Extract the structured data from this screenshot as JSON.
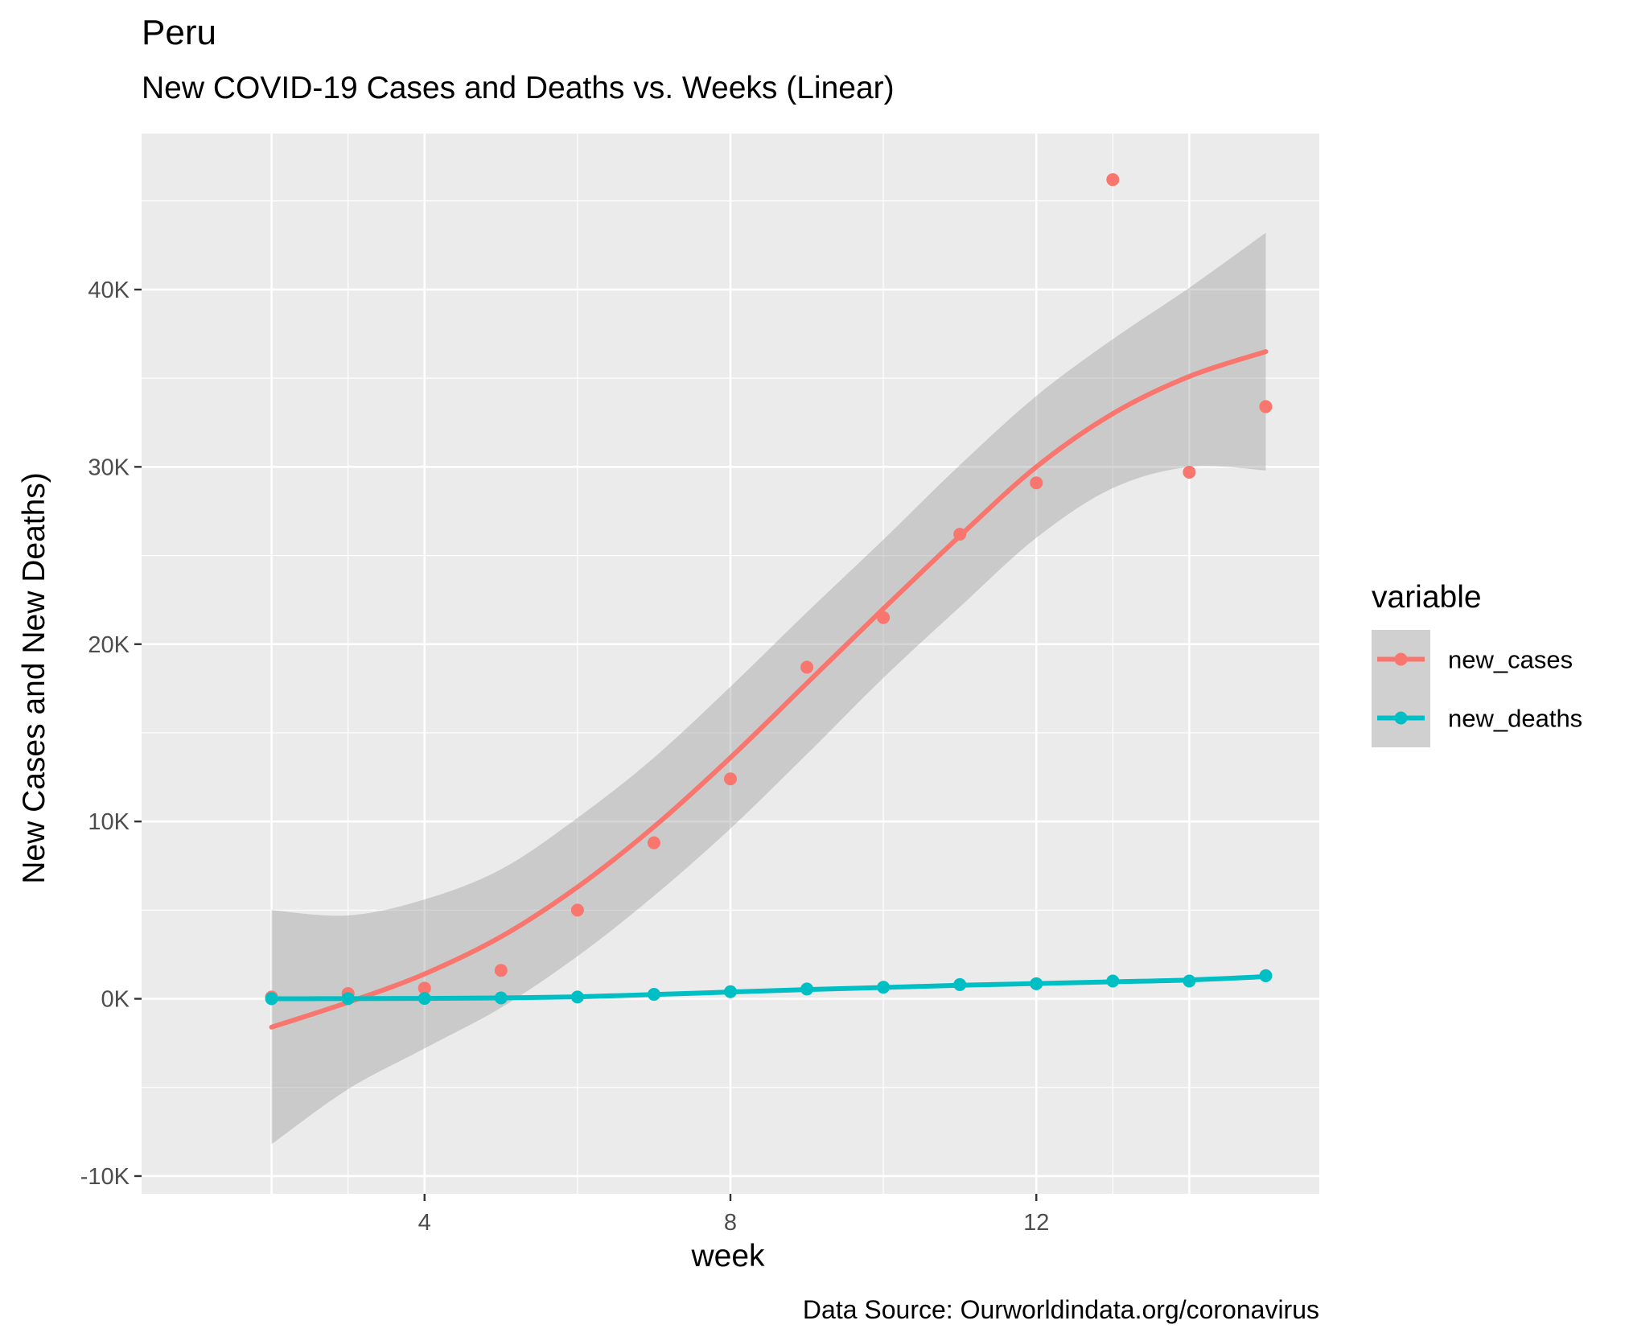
{
  "chart_data": {
    "type": "scatter",
    "title": "Peru",
    "subtitle": "New COVID-19 Cases and Deaths vs. Weeks (Linear)",
    "xlabel": "week",
    "ylabel": "New Cases and New Deaths)",
    "caption": "Data Source: Ourworldindata.org/coronavirus",
    "xlim": [
      0.3,
      15.7
    ],
    "ylim": [
      -11000,
      48800
    ],
    "x_ticks": [
      4,
      8,
      12
    ],
    "x_tick_labels": [
      "4",
      "8",
      "12"
    ],
    "y_ticks": [
      -10000,
      0,
      10000,
      20000,
      30000,
      40000
    ],
    "y_tick_labels": [
      "-10K",
      "0K",
      "10K",
      "20K",
      "30K",
      "40K"
    ],
    "grid": true,
    "legend": {
      "title": "variable",
      "placement": "right",
      "entries": [
        "new_cases",
        "new_deaths"
      ]
    },
    "colors": {
      "new_cases": "#F8766D",
      "new_deaths": "#00BFC4",
      "panel": "#EBEBEB",
      "ribbon": "#999999"
    },
    "series": [
      {
        "name": "new_cases",
        "x": [
          2,
          3,
          4,
          5,
          6,
          7,
          8,
          9,
          10,
          11,
          12,
          13,
          14,
          15
        ],
        "values": [
          100,
          300,
          600,
          1600,
          5000,
          8800,
          12400,
          18700,
          21500,
          26200,
          29100,
          46200,
          29700,
          33400
        ],
        "smooth": {
          "x": [
            2,
            3,
            4,
            5,
            6,
            7,
            8,
            9,
            10,
            11,
            12,
            13,
            14,
            15
          ],
          "fit": [
            -1600,
            -200,
            1400,
            3500,
            6300,
            9700,
            13600,
            17800,
            22000,
            26100,
            30000,
            33000,
            35100,
            36500
          ],
          "lower": [
            -8200,
            -5100,
            -2800,
            -500,
            2400,
            5800,
            9600,
            13800,
            18100,
            22100,
            26000,
            28800,
            30000,
            29800
          ],
          "upper": [
            5000,
            4700,
            5600,
            7300,
            10200,
            13600,
            17600,
            21800,
            25900,
            30100,
            34000,
            37200,
            40100,
            43200
          ]
        }
      },
      {
        "name": "new_deaths",
        "x": [
          2,
          3,
          4,
          5,
          6,
          7,
          8,
          9,
          10,
          11,
          12,
          13,
          14,
          15
        ],
        "values": [
          5,
          10,
          20,
          50,
          100,
          250,
          400,
          550,
          650,
          800,
          850,
          1000,
          1000,
          1300
        ],
        "smooth": {
          "x": [
            2,
            3,
            4,
            5,
            6,
            7,
            8,
            9,
            10,
            11,
            12,
            13,
            14,
            15
          ],
          "fit": [
            0,
            10,
            20,
            50,
            110,
            240,
            380,
            520,
            640,
            760,
            860,
            960,
            1060,
            1250
          ]
        }
      }
    ]
  }
}
